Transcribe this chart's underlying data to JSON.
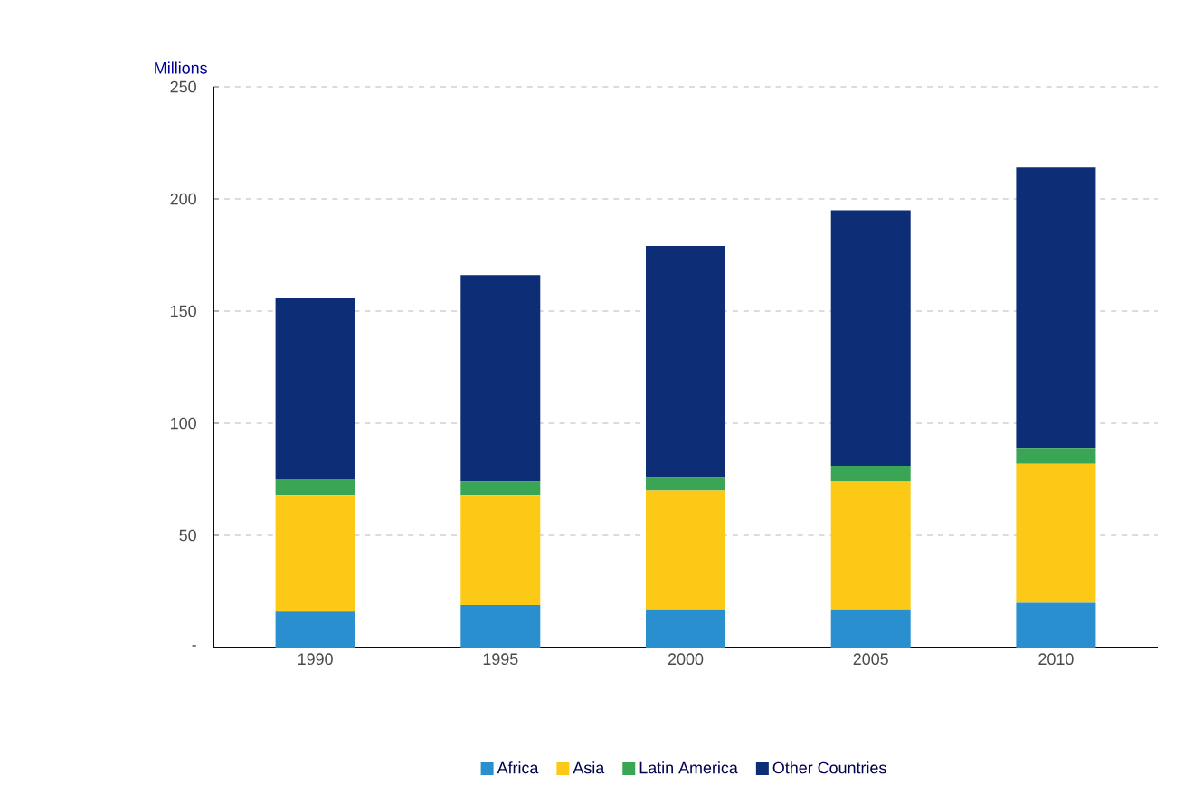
{
  "chart_data": {
    "type": "bar",
    "stacked": true,
    "ylabel": "Millions",
    "categories": [
      "1990",
      "1995",
      "2000",
      "2005",
      "2010"
    ],
    "series": [
      {
        "name": "Africa",
        "color": "#2a8fcf",
        "values": [
          16,
          19,
          17,
          17,
          20
        ]
      },
      {
        "name": "Asia",
        "color": "#fcc917",
        "values": [
          52,
          49,
          53,
          57,
          62
        ]
      },
      {
        "name": "Latin America",
        "color": "#3aa655",
        "values": [
          7,
          6,
          6,
          7,
          7
        ]
      },
      {
        "name": "Other Countries",
        "color": "#0d2d77",
        "values": [
          81,
          92,
          103,
          114,
          125
        ]
      }
    ],
    "ylim": [
      0,
      250
    ],
    "yticks": [
      {
        "value": 0,
        "label": "-"
      },
      50,
      100,
      150,
      200,
      250
    ],
    "grid": "y",
    "legend": "bottom"
  }
}
